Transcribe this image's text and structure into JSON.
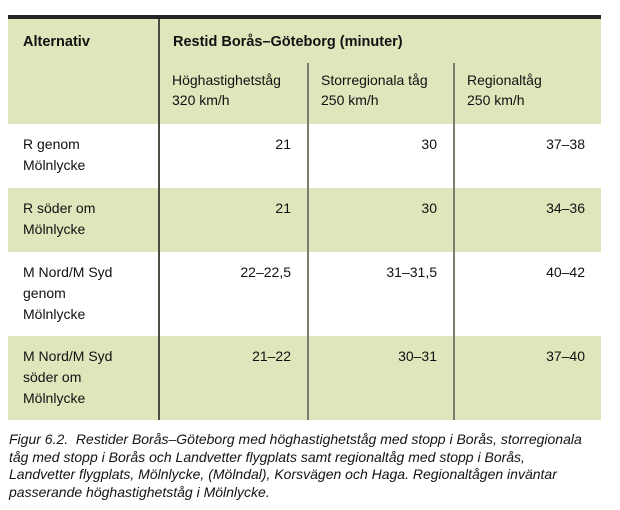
{
  "table": {
    "corner_header": "Alternativ",
    "group_header": "Restid Borås–Göteborg (minuter)",
    "col_headers": [
      "Höghastighetståg\n320 km/h",
      "Storregionala tåg\n250 km/h",
      "Regionaltåg\n250 km/h"
    ],
    "rows": [
      {
        "label": "R genom\nMölnlycke",
        "values": [
          "21",
          "30",
          "37–38"
        ]
      },
      {
        "label": "R söder om\nMölnlycke",
        "values": [
          "21",
          "30",
          "34–36"
        ]
      },
      {
        "label": "M Nord/M Syd\ngenom\nMölnlycke",
        "values": [
          "22–22,5",
          "31–31,5",
          "40–42"
        ]
      },
      {
        "label": "M Nord/M Syd\nsöder om\nMölnlycke",
        "values": [
          "21–22",
          "30–31",
          "37–40"
        ]
      }
    ]
  },
  "caption": {
    "text": "Figur 6.2.  Restider Borås–Göteborg med höghastighetståg med stopp i Borås, storregionala\ntåg med stopp i Borås och Landvetter flygplats samt regionaltåg med stopp i Borås,\nLandvetter flygplats, Mölnlycke, (Mölndal), Korsvägen och Haga. Regionaltågen inväntar\npasserande höghastighetståg i Mölnlycke."
  },
  "colors": {
    "row_green": "#e1e5bc",
    "top_rule": "#232323",
    "divider_dark": "#4c4c44",
    "divider_light": "#7c7c70"
  }
}
